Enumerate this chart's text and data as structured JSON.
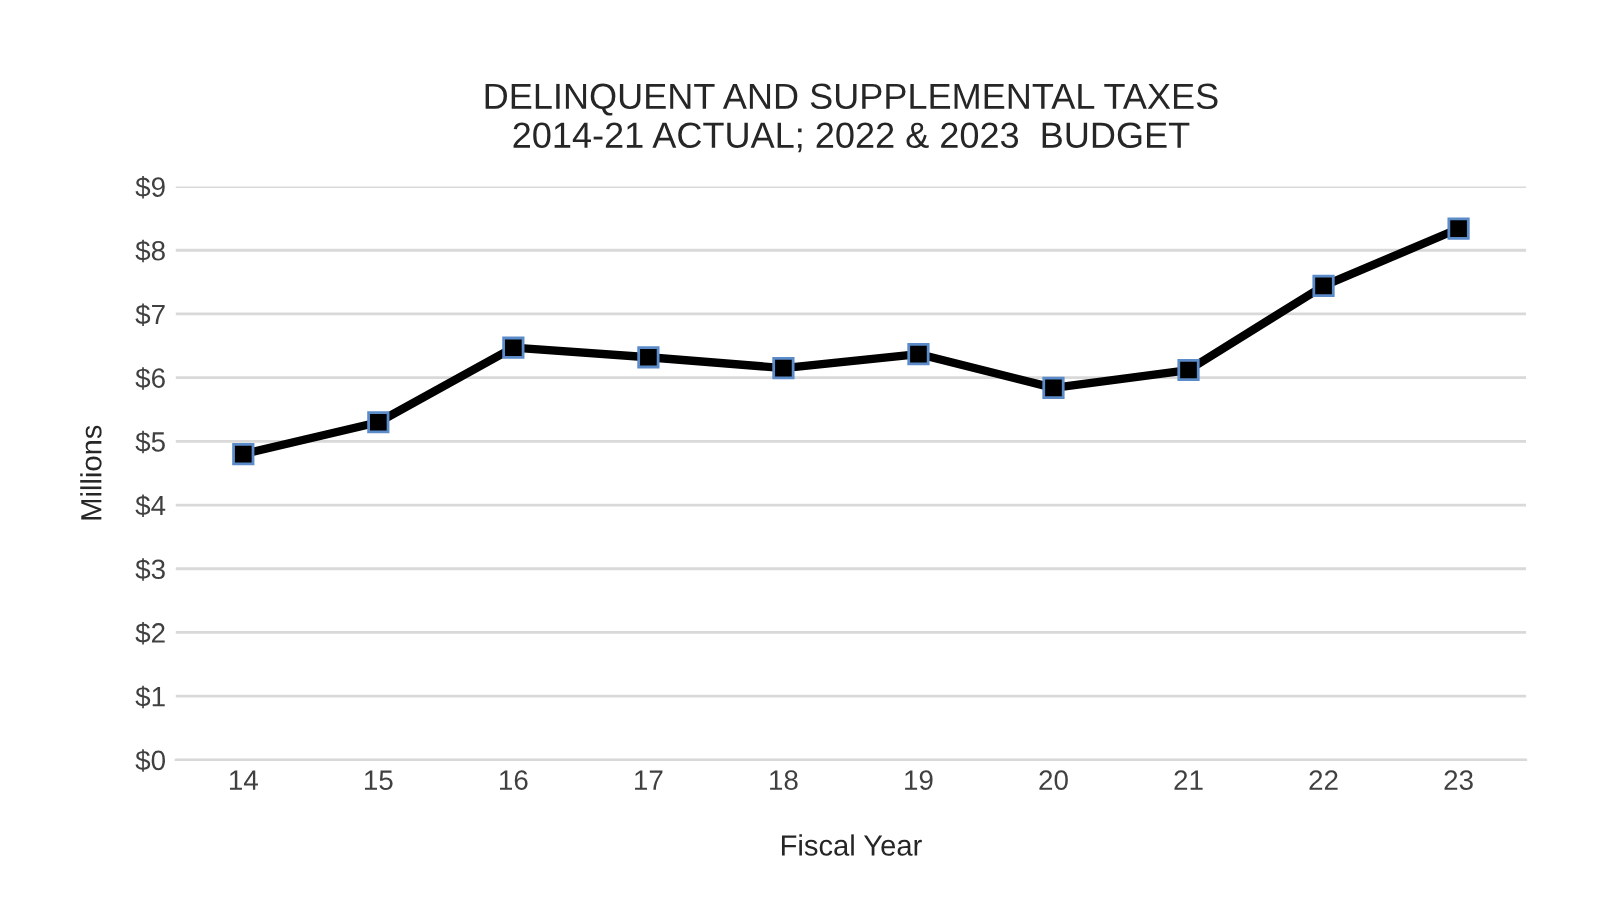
{
  "chart_data": {
    "type": "line",
    "title": "DELINQUENT AND SUPPLEMENTAL TAXES\n2014-21 ACTUAL; 2022 & 2023  BUDGET",
    "xlabel": "Fiscal Year",
    "ylabel": "Millions",
    "categories": [
      "14",
      "15",
      "16",
      "17",
      "18",
      "19",
      "20",
      "21",
      "22",
      "23"
    ],
    "series": [
      {
        "color": "#000000",
        "values": [
          4.8,
          5.3,
          6.47,
          6.32,
          6.15,
          6.37,
          5.84,
          6.12,
          7.44,
          8.34
        ]
      }
    ],
    "ylim": [
      0,
      9
    ],
    "yticks": [
      {
        "value": 0,
        "label": "$0"
      },
      {
        "value": 1,
        "label": "$1"
      },
      {
        "value": 2,
        "label": "$2"
      },
      {
        "value": 3,
        "label": "$3"
      },
      {
        "value": 4,
        "label": "$4"
      },
      {
        "value": 5,
        "label": "$5"
      },
      {
        "value": 6,
        "label": "$6"
      },
      {
        "value": 7,
        "label": "$7"
      },
      {
        "value": 8,
        "label": "$8"
      },
      {
        "value": 9,
        "label": "$9"
      }
    ],
    "grid": "y",
    "marker": "square",
    "line_style": "solid",
    "legend": false
  }
}
